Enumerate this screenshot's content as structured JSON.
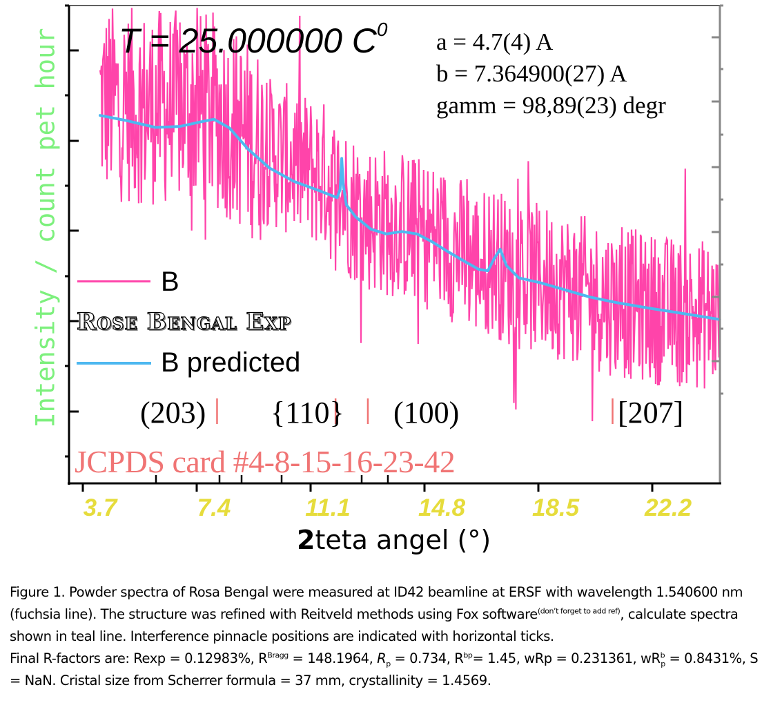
{
  "chart_data": {
    "type": "line",
    "title": "",
    "xlabel_prefix": "2",
    "xlabel": "teta angel (°)",
    "ylabel": "Intensity / count pet hour",
    "xlim": [
      2.69,
      23.83
    ],
    "ylim": [
      0,
      1
    ],
    "x_ticks": [
      "3.7",
      "7.4",
      "11.1",
      "14.8",
      "18.5",
      "22.2"
    ],
    "x_tick_values": [
      3.7,
      7.4,
      11.1,
      14.8,
      18.5,
      22.2
    ],
    "y_tick_labels_shown": false,
    "grid": false,
    "legend": {
      "placement": "center-left",
      "entries": [
        {
          "label": "B",
          "color": "#ff44aa"
        },
        {
          "label": "Rose Bengal Exp",
          "color": null
        },
        {
          "label": "B predicted",
          "color": "#4db8f0"
        }
      ]
    },
    "series": [
      {
        "name": "B",
        "color": "#ff44aa",
        "description": "noisy experimental powder spectrum",
        "x_range": [
          3.7,
          23.83
        ],
        "trend_x": [
          3.7,
          5.0,
          7.4,
          9.0,
          11.1,
          11.2,
          12.3,
          13.5,
          14.8,
          16.0,
          16.5,
          17.0,
          18.5,
          20.5,
          22.2,
          23.83
        ],
        "trend_y": [
          0.8,
          0.79,
          0.78,
          0.7,
          0.64,
          0.62,
          0.56,
          0.54,
          0.51,
          0.46,
          0.47,
          0.44,
          0.42,
          0.38,
          0.36,
          0.35
        ],
        "noise_amplitude": 0.16
      },
      {
        "name": "B predicted",
        "color": "#4db8f0",
        "x": [
          3.7,
          4.5,
          5.5,
          6.3,
          7.0,
          7.4,
          7.9,
          8.5,
          9.2,
          10.0,
          10.8,
          11.4,
          11.5,
          11.55,
          11.6,
          11.7,
          12.0,
          12.5,
          13.0,
          13.5,
          14.0,
          14.5,
          15.0,
          15.5,
          16.0,
          16.3,
          16.5,
          16.7,
          16.9,
          17.3,
          18.0,
          18.8,
          19.6,
          20.5,
          21.5,
          22.5,
          23.83
        ],
        "y": [
          0.77,
          0.76,
          0.745,
          0.747,
          0.757,
          0.762,
          0.744,
          0.7,
          0.66,
          0.632,
          0.613,
          0.598,
          0.615,
          0.68,
          0.625,
          0.583,
          0.558,
          0.532,
          0.522,
          0.527,
          0.522,
          0.505,
          0.485,
          0.466,
          0.448,
          0.445,
          0.47,
          0.49,
          0.456,
          0.43,
          0.42,
          0.405,
          0.39,
          0.378,
          0.367,
          0.357,
          0.343
        ]
      }
    ],
    "reflection_markers": [
      {
        "label": "(203)",
        "x": 7.5
      },
      {
        "label": "{110}",
        "x": 11.35
      },
      {
        "label": "(100)",
        "x": 12.4
      },
      {
        "label": "[207]",
        "x": 20.35
      }
    ],
    "annotations": {
      "temperature_prefix": "T",
      "temperature_text": " = 25.000000 C",
      "temperature_sup": "0",
      "params": [
        "a = 4.7(4) A",
        "b = 7.364900(27) A",
        "gamm = 98,89(23) degr"
      ],
      "jcpds": "JCPDS card #4-8-15-16-23-42"
    }
  },
  "caption": {
    "line1": "Figure 1. Powder spectra of Rosa Bengal were measured at ID42 beamline at ERSF with wavelength 1.540600 nm (fuchsia line). The structure was refined with Reitveld methods using Fox software",
    "ref_note": "(don’t forget to add ref)",
    "line1_rest": ", calculate spectra shown in teal line. Interference pinnacle positions are indicated with horizontal ticks.",
    "rfactors_intro": "Final R-factors are: Rexp = 0.12983%, R",
    "r_bragg_sup": "Bragg",
    "r_bragg_val": " = 148.1964, ",
    "rp_label": "R",
    "rp_sub": "p",
    "rp_val": " = 0.734, R",
    "rbp_sup": "bp",
    "rbp_val": "= 1.45, wRp = 0.231361, wR",
    "wrbp_sup": "b",
    "wrbp_sub": "p",
    "wrbp_val": " = 0.8431%, S = NaN. Cristal size from Scherrer formula = 37 mm, crystallinity = 1.4569."
  }
}
